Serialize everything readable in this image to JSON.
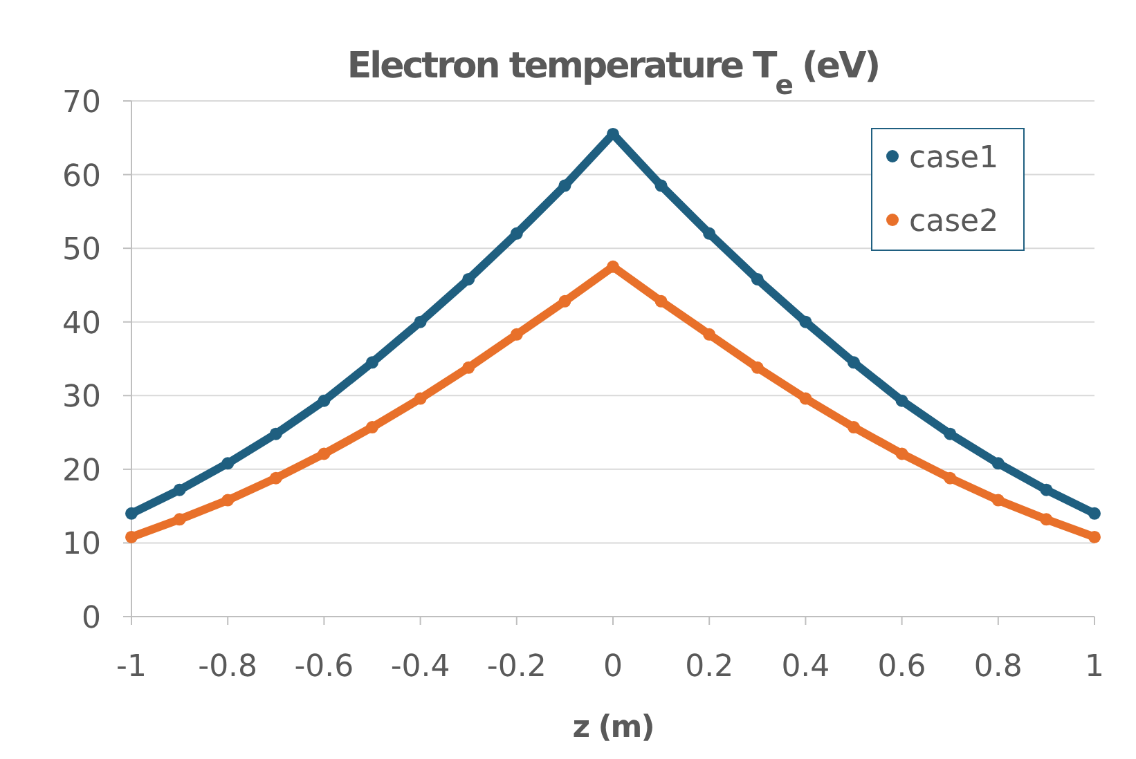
{
  "chart_data": {
    "type": "line",
    "title": "Electron temperature T$_{e}$ (eV)",
    "xlabel": "z (m)",
    "x": [
      -1,
      -0.9,
      -0.8,
      -0.7,
      -0.6,
      -0.5,
      -0.4,
      -0.3,
      -0.2,
      -0.1,
      0,
      0.1,
      0.2,
      0.3,
      0.4,
      0.5,
      0.6,
      0.7,
      0.8,
      0.9,
      1
    ],
    "series": [
      {
        "name": "case1",
        "color": "#1f5f80",
        "values": [
          14,
          17.2,
          20.8,
          24.8,
          29.3,
          34.5,
          40,
          45.8,
          52,
          58.5,
          65.5,
          58.5,
          52,
          45.8,
          40,
          34.5,
          29.3,
          24.8,
          20.8,
          17.2,
          14
        ]
      },
      {
        "name": "case2",
        "color": "#e8702a",
        "values": [
          10.8,
          13.2,
          15.8,
          18.8,
          22.1,
          25.7,
          29.6,
          33.8,
          38.3,
          42.8,
          47.5,
          42.8,
          38.3,
          33.8,
          29.6,
          25.7,
          22.1,
          18.8,
          15.8,
          13.2,
          10.8
        ]
      }
    ],
    "xlim": [
      -1,
      1
    ],
    "xticks": [
      -1,
      -0.8,
      -0.6,
      -0.4,
      -0.2,
      0,
      0.2,
      0.4,
      0.6,
      0.8,
      1
    ],
    "ylim": [
      0,
      70
    ],
    "yticks": [
      0,
      10,
      20,
      30,
      40,
      50,
      60,
      70
    ],
    "grid": "y",
    "legend": "top right",
    "marker": "circle",
    "line_style": "solid"
  }
}
